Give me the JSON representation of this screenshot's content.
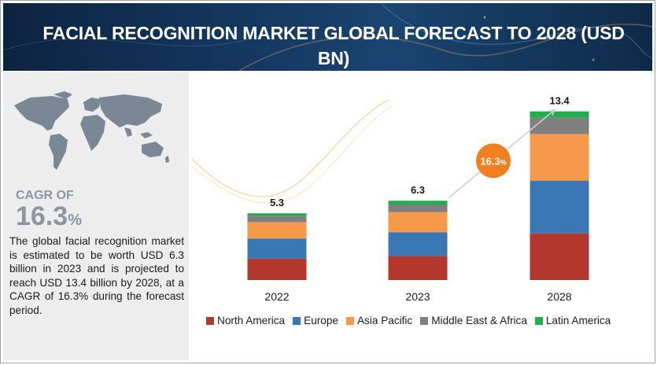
{
  "header": {
    "title": "FACIAL RECOGNITION MARKET GLOBAL FORECAST TO 2028 (USD BN)"
  },
  "summary": {
    "cagr_label": "CAGR OF",
    "cagr_value": "16.3",
    "cagr_unit": "%",
    "description": "The global facial recognition market is estimated to be worth USD 6.3 billion in 2023 and is projected to reach USD 13.4 billion by 2028, at a CAGR of 16.3% during the forecast period."
  },
  "colors": {
    "north_america": "#b4372e",
    "europe": "#3a78b5",
    "asia_pacific": "#f6994a",
    "middle_east_africa": "#7f7f7f",
    "latin_america": "#1fae4b",
    "badge": "#f07f1e",
    "map": "#7a8795"
  },
  "chart_data": {
    "type": "bar",
    "stacked": true,
    "categories": [
      "2022",
      "2023",
      "2028"
    ],
    "totals": [
      "5.3",
      "6.3",
      "13.4"
    ],
    "series": [
      {
        "name": "North America",
        "values": [
          1.7,
          1.9,
          3.7
        ],
        "color": "#b4372e"
      },
      {
        "name": "Europe",
        "values": [
          1.6,
          1.9,
          4.2
        ],
        "color": "#3a78b5"
      },
      {
        "name": "Asia Pacific",
        "values": [
          1.3,
          1.6,
          3.7
        ],
        "color": "#f6994a"
      },
      {
        "name": "Middle East & Africa",
        "values": [
          0.5,
          0.6,
          1.3
        ],
        "color": "#7f7f7f"
      },
      {
        "name": "Latin America",
        "values": [
          0.2,
          0.3,
          0.5
        ],
        "color": "#1fae4b"
      }
    ],
    "annotation": {
      "text": "16.3",
      "unit": "%"
    },
    "legend_position": "bottom",
    "grid": false
  }
}
